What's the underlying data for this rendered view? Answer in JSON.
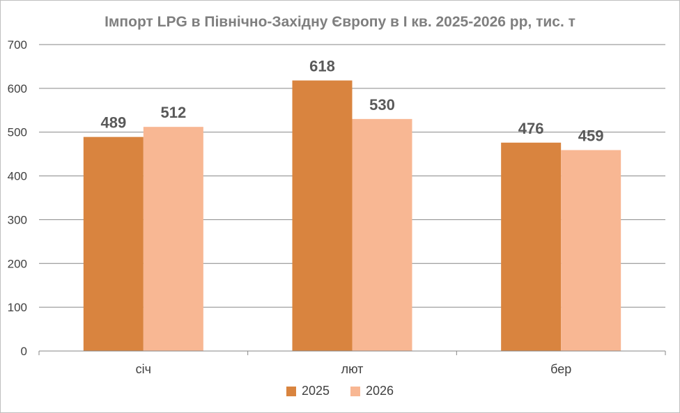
{
  "chart_data": {
    "type": "bar",
    "title": "Імпорт LPG в Північно-Західну Європу  в І кв. 2025-2026 рр, тис. т",
    "categories": [
      "січ",
      "лют",
      "бер"
    ],
    "series": [
      {
        "name": "2025",
        "values": [
          489,
          618,
          476
        ],
        "color": "#d9843f"
      },
      {
        "name": "2026",
        "values": [
          512,
          530,
          459
        ],
        "color": "#f8b793"
      }
    ],
    "ylim": [
      0,
      700
    ],
    "yticks": [
      0,
      100,
      200,
      300,
      400,
      500,
      600,
      700
    ],
    "grid": true,
    "legend": "bottom"
  }
}
